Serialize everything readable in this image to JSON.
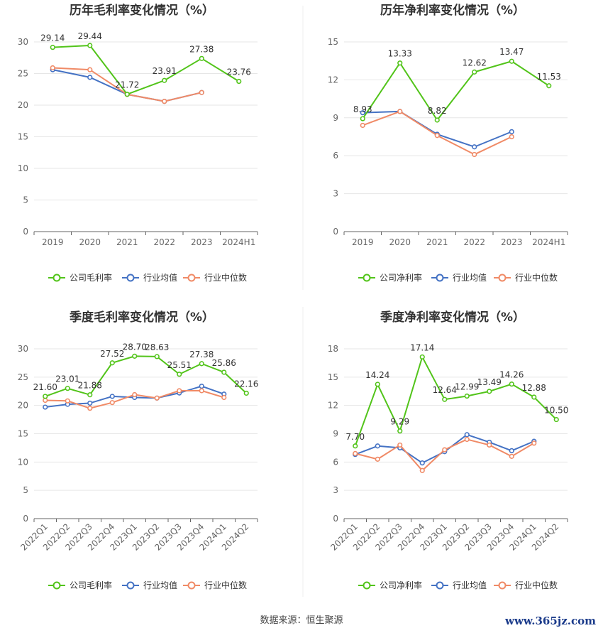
{
  "colors": {
    "company": "#52c41a",
    "industry_avg": "#4472c4",
    "industry_median": "#f08a66",
    "grid": "#e6e6e6",
    "axis_text": "#666666",
    "label_text": "#333333",
    "title_text": "#333333"
  },
  "footer": {
    "source": "数据来源：恒生聚源",
    "watermark": "www.365jz.com"
  },
  "chart_data": [
    {
      "type": "line",
      "title": "历年毛利率变化情况（%）",
      "categories": [
        "2019",
        "2020",
        "2021",
        "2022",
        "2023",
        "2024H1"
      ],
      "ylim": [
        0,
        30
      ],
      "yticks": [
        0,
        5,
        10,
        15,
        20,
        25,
        30
      ],
      "series": [
        {
          "name": "公司毛利率",
          "key": "company",
          "values": [
            29.14,
            29.44,
            21.72,
            23.91,
            27.38,
            23.76
          ],
          "labels": [
            "29.14",
            "29.44",
            "21.72",
            "23.91",
            "27.38",
            "23.76"
          ]
        },
        {
          "name": "行业均值",
          "key": "industry_avg",
          "values": [
            25.6,
            24.4,
            21.7,
            20.6,
            22.0,
            null
          ]
        },
        {
          "name": "行业中位数",
          "key": "industry_median",
          "values": [
            25.9,
            25.6,
            21.7,
            20.6,
            22.0,
            null
          ]
        }
      ]
    },
    {
      "type": "line",
      "title": "历年净利率变化情况（%）",
      "categories": [
        "2019",
        "2020",
        "2021",
        "2022",
        "2023",
        "2024H1"
      ],
      "ylim": [
        0,
        15
      ],
      "yticks": [
        0,
        3,
        6,
        9,
        12,
        15
      ],
      "series": [
        {
          "name": "公司净利率",
          "key": "company",
          "values": [
            8.93,
            13.33,
            8.82,
            12.62,
            13.47,
            11.53
          ],
          "labels": [
            "8.93",
            "13.33",
            "8.82",
            "12.62",
            "13.47",
            "11.53"
          ]
        },
        {
          "name": "行业均值",
          "key": "industry_avg",
          "values": [
            9.4,
            9.5,
            7.7,
            6.7,
            7.9,
            null
          ]
        },
        {
          "name": "行业中位数",
          "key": "industry_median",
          "values": [
            8.4,
            9.5,
            7.6,
            6.1,
            7.5,
            null
          ]
        }
      ]
    },
    {
      "type": "line",
      "title": "季度毛利率变化情况（%）",
      "categories": [
        "2022Q1",
        "2022Q2",
        "2022Q3",
        "2022Q4",
        "2023Q1",
        "2023Q2",
        "2023Q3",
        "2023Q4",
        "2024Q1",
        "2024Q2"
      ],
      "ylim": [
        0,
        30
      ],
      "yticks": [
        0,
        5,
        10,
        15,
        20,
        25,
        30
      ],
      "series": [
        {
          "name": "公司毛利率",
          "key": "company",
          "values": [
            21.6,
            23.01,
            21.88,
            27.52,
            28.7,
            28.63,
            25.51,
            27.38,
            25.86,
            22.16
          ],
          "labels": [
            "21.60",
            "23.01",
            "21.88",
            "27.52",
            "28.70",
            "28.63",
            "25.51",
            "27.38",
            "25.86",
            "22.16"
          ]
        },
        {
          "name": "行业均值",
          "key": "industry_avg",
          "values": [
            19.7,
            20.2,
            20.4,
            21.6,
            21.4,
            21.3,
            22.2,
            23.4,
            22.0,
            null
          ]
        },
        {
          "name": "行业中位数",
          "key": "industry_median",
          "values": [
            20.9,
            20.8,
            19.5,
            20.5,
            21.9,
            21.3,
            22.6,
            22.6,
            21.4,
            null
          ]
        }
      ]
    },
    {
      "type": "line",
      "title": "季度净利率变化情况（%）",
      "categories": [
        "2022Q1",
        "2022Q2",
        "2022Q3",
        "2022Q4",
        "2023Q1",
        "2023Q2",
        "2023Q3",
        "2023Q4",
        "2024Q1",
        "2024Q2"
      ],
      "ylim": [
        0,
        18
      ],
      "yticks": [
        0,
        3,
        6,
        9,
        12,
        15,
        18
      ],
      "series": [
        {
          "name": "公司净利率",
          "key": "company",
          "values": [
            7.7,
            14.24,
            9.29,
            17.14,
            12.64,
            12.99,
            13.49,
            14.26,
            12.88,
            10.5
          ],
          "labels": [
            "7.70",
            "14.24",
            "9.29",
            "17.14",
            "12.64",
            "12.99",
            "13.49",
            "14.26",
            "12.88",
            "10.50"
          ]
        },
        {
          "name": "行业均值",
          "key": "industry_avg",
          "values": [
            6.8,
            7.7,
            7.5,
            5.9,
            7.1,
            8.9,
            8.1,
            7.2,
            8.2,
            null
          ]
        },
        {
          "name": "行业中位数",
          "key": "industry_median",
          "values": [
            6.9,
            6.3,
            7.8,
            5.1,
            7.3,
            8.4,
            7.8,
            6.6,
            8.0,
            null
          ]
        }
      ]
    }
  ]
}
